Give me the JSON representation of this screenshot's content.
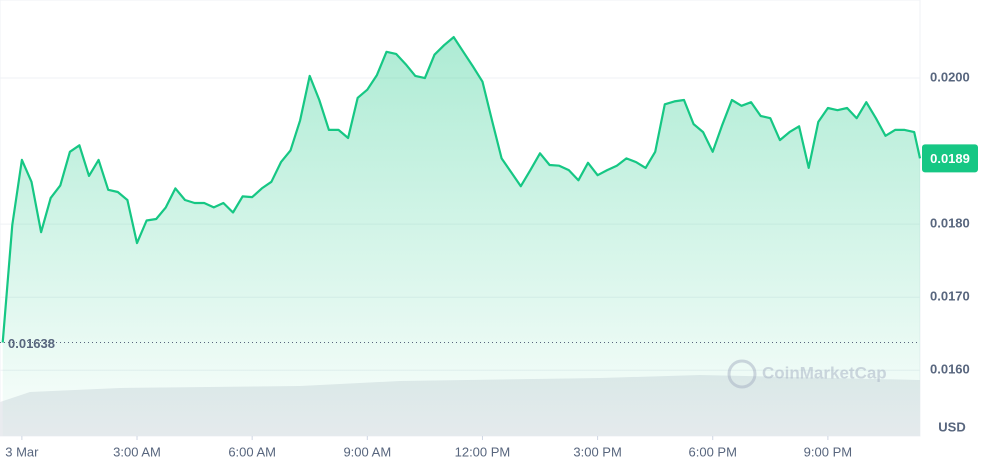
{
  "chart_data": {
    "type": "line",
    "color": "#16c784",
    "x": [
      -0.5,
      -0.25,
      0,
      0.25,
      0.5,
      0.75,
      1,
      1.25,
      1.5,
      1.75,
      2,
      2.25,
      2.5,
      2.75,
      3,
      3.25,
      3.5,
      3.75,
      4,
      4.25,
      4.5,
      4.75,
      5,
      5.25,
      5.5,
      5.75,
      6,
      6.25,
      6.5,
      6.75,
      7,
      7.25,
      7.5,
      7.75,
      8,
      8.25,
      8.5,
      8.75,
      9,
      9.25,
      9.5,
      9.75,
      10,
      10.25,
      10.5,
      10.75,
      11,
      11.25,
      11.5,
      11.75,
      12,
      12.25,
      12.5,
      12.75,
      13,
      13.25,
      13.5,
      13.75,
      14,
      14.25,
      14.5,
      14.75,
      15,
      15.25,
      15.5,
      15.75,
      16,
      16.25,
      16.5,
      16.75,
      17,
      17.25,
      17.5,
      17.75,
      18,
      18.25,
      18.5,
      18.75,
      19,
      19.25,
      19.5,
      19.75,
      20,
      20.25,
      20.5,
      20.75,
      21,
      21.25,
      21.5,
      21.75,
      22,
      22.25,
      22.5,
      22.75,
      23,
      23.25,
      23.4
    ],
    "values": [
      0.01638,
      0.01799,
      0.01888,
      0.01858,
      0.01789,
      0.01836,
      0.01853,
      0.01899,
      0.01908,
      0.01866,
      0.01888,
      0.01847,
      0.01844,
      0.01833,
      0.01774,
      0.01805,
      0.01807,
      0.01823,
      0.01849,
      0.01833,
      0.01829,
      0.01829,
      0.01823,
      0.01829,
      0.01816,
      0.01838,
      0.01837,
      0.01849,
      0.01858,
      0.01885,
      0.01901,
      0.01942,
      0.02003,
      0.0197,
      0.01929,
      0.01929,
      0.01918,
      0.01973,
      0.01984,
      0.02004,
      0.02036,
      0.02033,
      0.02019,
      0.02003,
      0.02,
      0.02032,
      0.02045,
      0.02056,
      0.02036,
      0.02016,
      0.01995,
      0.01942,
      0.0189,
      0.01871,
      0.01852,
      0.01874,
      0.01897,
      0.01881,
      0.0188,
      0.01874,
      0.0186,
      0.01884,
      0.01867,
      0.01874,
      0.0188,
      0.0189,
      0.01885,
      0.01877,
      0.01899,
      0.01964,
      0.01968,
      0.0197,
      0.01937,
      0.01926,
      0.01899,
      0.01936,
      0.0197,
      0.01962,
      0.01967,
      0.01948,
      0.01945,
      0.01915,
      0.01926,
      0.01934,
      0.01877,
      0.0194,
      0.01959,
      0.01956,
      0.01959,
      0.01945,
      0.01967,
      0.01945,
      0.01921,
      0.01929,
      0.01929,
      0.01926,
      0.0189
    ],
    "xlim": [
      -0.57,
      23.4
    ],
    "xticks": [
      {
        "value": 0,
        "label": "3 Mar"
      },
      {
        "value": 3,
        "label": "3:00 AM"
      },
      {
        "value": 6,
        "label": "6:00 AM"
      },
      {
        "value": 9,
        "label": "9:00 AM"
      },
      {
        "value": 12,
        "label": "12:00 PM"
      },
      {
        "value": 15,
        "label": "3:00 PM"
      },
      {
        "value": 18,
        "label": "6:00 PM"
      },
      {
        "value": 21,
        "label": "9:00 PM"
      }
    ],
    "ylim": [
      0.0151,
      0.021
    ],
    "yticks": [
      {
        "value": 0.016,
        "label": "0.0160"
      },
      {
        "value": 0.017,
        "label": "0.0170"
      },
      {
        "value": 0.018,
        "label": "0.0180"
      },
      {
        "value": 0.02,
        "label": "0.0200"
      }
    ],
    "grid": true,
    "start_price": 0.01638,
    "current_price": 0.0189,
    "currency_label": "USD",
    "watermark": "CoinMarketCap"
  }
}
